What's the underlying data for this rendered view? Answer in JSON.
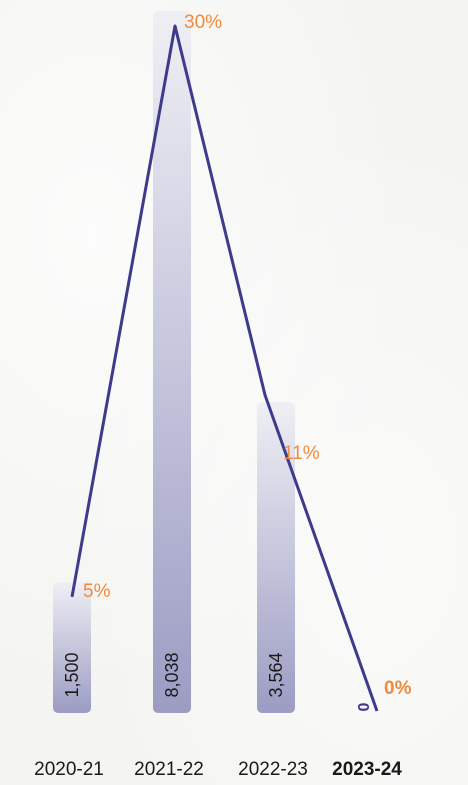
{
  "chart_data": {
    "type": "bar",
    "categories": [
      "2020-21",
      "2021-22",
      "2022-23",
      "2023-24"
    ],
    "values": [
      1500,
      8038,
      3564,
      0
    ],
    "value_labels": [
      "1,500",
      "8,038",
      "3,564",
      "0"
    ],
    "line_series": {
      "values": [
        5,
        30,
        11,
        0
      ],
      "labels": [
        "5%",
        "30%",
        "11%",
        "0%"
      ]
    },
    "highlight_category_index": 3,
    "colors": {
      "bar_top": "#efeff5",
      "bar_bottom": "#9c9cc4",
      "line": "#3e3a8c",
      "percent_label": "#f28a3c",
      "text": "#1a1a1a"
    },
    "legend": "none",
    "grid": false
  }
}
